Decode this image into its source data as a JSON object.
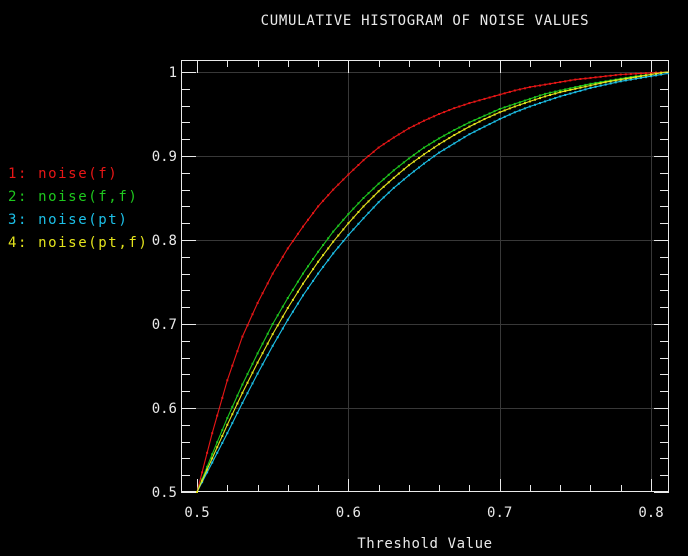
{
  "window": {
    "background": "#000000"
  },
  "chart_data": {
    "type": "line",
    "title": "CUMULATIVE HISTOGRAM OF NOISE VALUES",
    "xlabel": "Threshold Value",
    "ylabel": "",
    "xlim": [
      0.4894,
      0.8119
    ],
    "ylim": [
      0.5,
      1.0143
    ],
    "x_major_ticks": [
      0.5,
      0.6,
      0.7,
      0.8
    ],
    "x_tick_labels": [
      "0.5",
      "0.6",
      "0.7",
      "0.8"
    ],
    "y_major_ticks": [
      0.5,
      0.6,
      0.7,
      0.8,
      0.9,
      1.0
    ],
    "y_tick_labels": [
      "0.5",
      "0.6",
      "0.7",
      "0.8",
      "0.9",
      "1"
    ],
    "minor_tick_step": 0.02,
    "grid": {
      "x_values": [
        0.6,
        0.7,
        0.8
      ],
      "y_values": [
        0.6,
        0.7,
        0.8,
        0.9,
        1.0
      ],
      "color": "#383838"
    },
    "axis_color": "#e9e9e9",
    "text_color": "#e9e9e9",
    "legend_position": "outside-left",
    "x": [
      0.5,
      0.51,
      0.52,
      0.53,
      0.54,
      0.55,
      0.56,
      0.57,
      0.58,
      0.59,
      0.6,
      0.61,
      0.62,
      0.63,
      0.64,
      0.65,
      0.66,
      0.67,
      0.68,
      0.69,
      0.7,
      0.71,
      0.72,
      0.73,
      0.74,
      0.75,
      0.76,
      0.77,
      0.78,
      0.79,
      0.8,
      0.81
    ],
    "series": [
      {
        "name": "1: noise(f)",
        "color": "#e81616",
        "values": [
          0.5,
          0.57,
          0.633,
          0.685,
          0.725,
          0.76,
          0.79,
          0.816,
          0.84,
          0.86,
          0.878,
          0.895,
          0.91,
          0.922,
          0.933,
          0.942,
          0.95,
          0.957,
          0.963,
          0.968,
          0.973,
          0.978,
          0.982,
          0.985,
          0.988,
          0.991,
          0.993,
          0.995,
          0.997,
          0.998,
          0.999,
          1.0
        ]
      },
      {
        "name": "2: noise(f,f)",
        "color": "#1ec81e",
        "values": [
          0.5,
          0.545,
          0.588,
          0.628,
          0.665,
          0.7,
          0.731,
          0.76,
          0.786,
          0.81,
          0.831,
          0.85,
          0.867,
          0.883,
          0.897,
          0.91,
          0.921,
          0.931,
          0.94,
          0.948,
          0.956,
          0.962,
          0.968,
          0.974,
          0.978,
          0.982,
          0.986,
          0.989,
          0.992,
          0.995,
          0.997,
          1.0
        ]
      },
      {
        "name": "3: noise(pt)",
        "color": "#1cc0e8",
        "values": [
          0.5,
          0.535,
          0.57,
          0.606,
          0.641,
          0.674,
          0.705,
          0.734,
          0.76,
          0.784,
          0.806,
          0.826,
          0.845,
          0.862,
          0.877,
          0.891,
          0.904,
          0.915,
          0.926,
          0.935,
          0.944,
          0.952,
          0.959,
          0.965,
          0.971,
          0.976,
          0.981,
          0.985,
          0.989,
          0.992,
          0.995,
          0.998
        ]
      },
      {
        "name": "4: noise(pt,f)",
        "color": "#e4e41c",
        "values": [
          0.5,
          0.54,
          0.58,
          0.618,
          0.654,
          0.688,
          0.719,
          0.748,
          0.774,
          0.798,
          0.82,
          0.84,
          0.858,
          0.874,
          0.889,
          0.902,
          0.914,
          0.925,
          0.935,
          0.944,
          0.952,
          0.959,
          0.965,
          0.971,
          0.976,
          0.98,
          0.984,
          0.988,
          0.991,
          0.994,
          0.997,
          1.0
        ]
      }
    ]
  }
}
